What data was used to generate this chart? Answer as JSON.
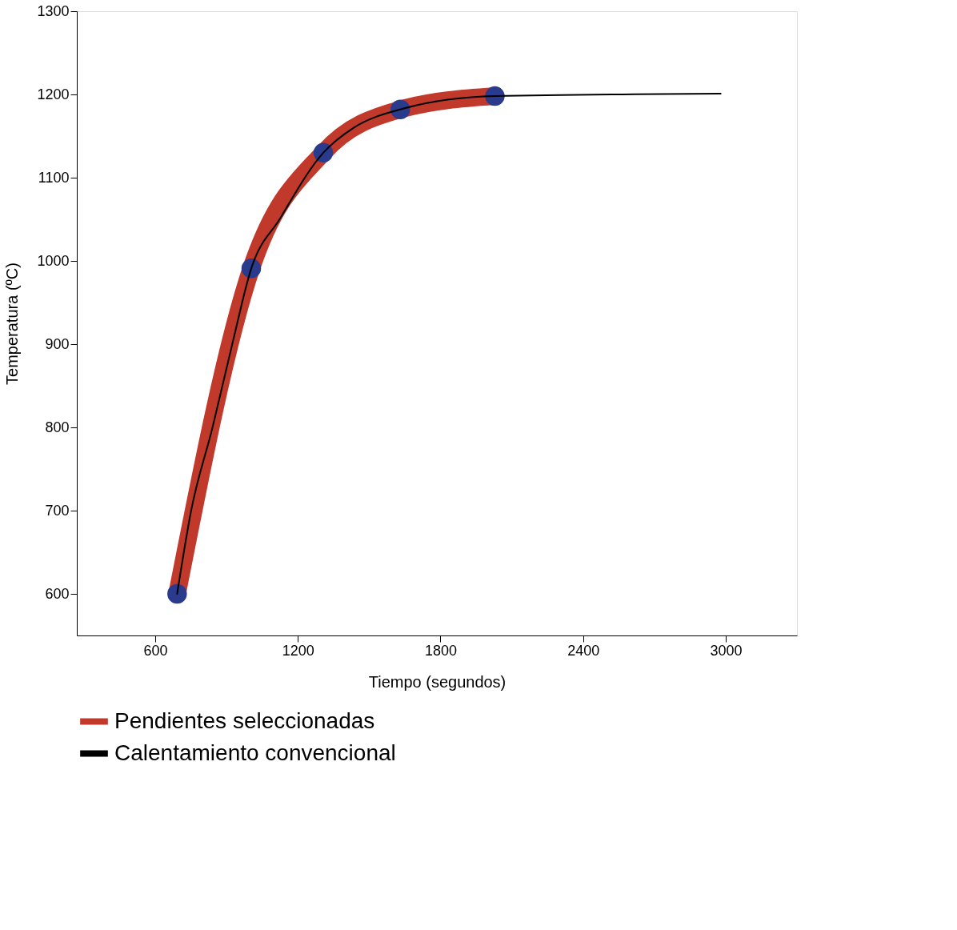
{
  "chart_data": {
    "type": "line",
    "xlabel": "Tiempo (segundos)",
    "ylabel": "Temperatura (ºC)",
    "xlim": [
      270,
      3300
    ],
    "ylim": [
      550,
      1300
    ],
    "xticks": [
      600,
      1200,
      1800,
      2400,
      3000
    ],
    "yticks": [
      600,
      700,
      800,
      900,
      1000,
      1100,
      1200,
      1300
    ],
    "grid": false,
    "legend": "bottom",
    "series": [
      {
        "name": "Pendientes seleccionadas",
        "color": "#c0392b",
        "x": [
          692,
          1004,
          1307,
          1631,
          2029
        ],
        "values": [
          600,
          991,
          1130,
          1182,
          1198
        ],
        "marker": "none"
      },
      {
        "type": "scatter",
        "color": "#2a3a8c",
        "x": [
          692,
          1004,
          1307,
          1631,
          2029
        ],
        "values": [
          600,
          991,
          1130,
          1182,
          1198
        ],
        "marker": "circle"
      },
      {
        "name": "Calentamiento convencional",
        "color": "#000000",
        "x": [
          692,
          751,
          841,
          924,
          1004,
          1123,
          1307,
          1435,
          1631,
          2029,
          2979
        ],
        "values": [
          600,
          700,
          800,
          900,
          991,
          1050,
          1130,
          1160,
          1182,
          1198,
          1201
        ],
        "marker": "none"
      }
    ]
  }
}
